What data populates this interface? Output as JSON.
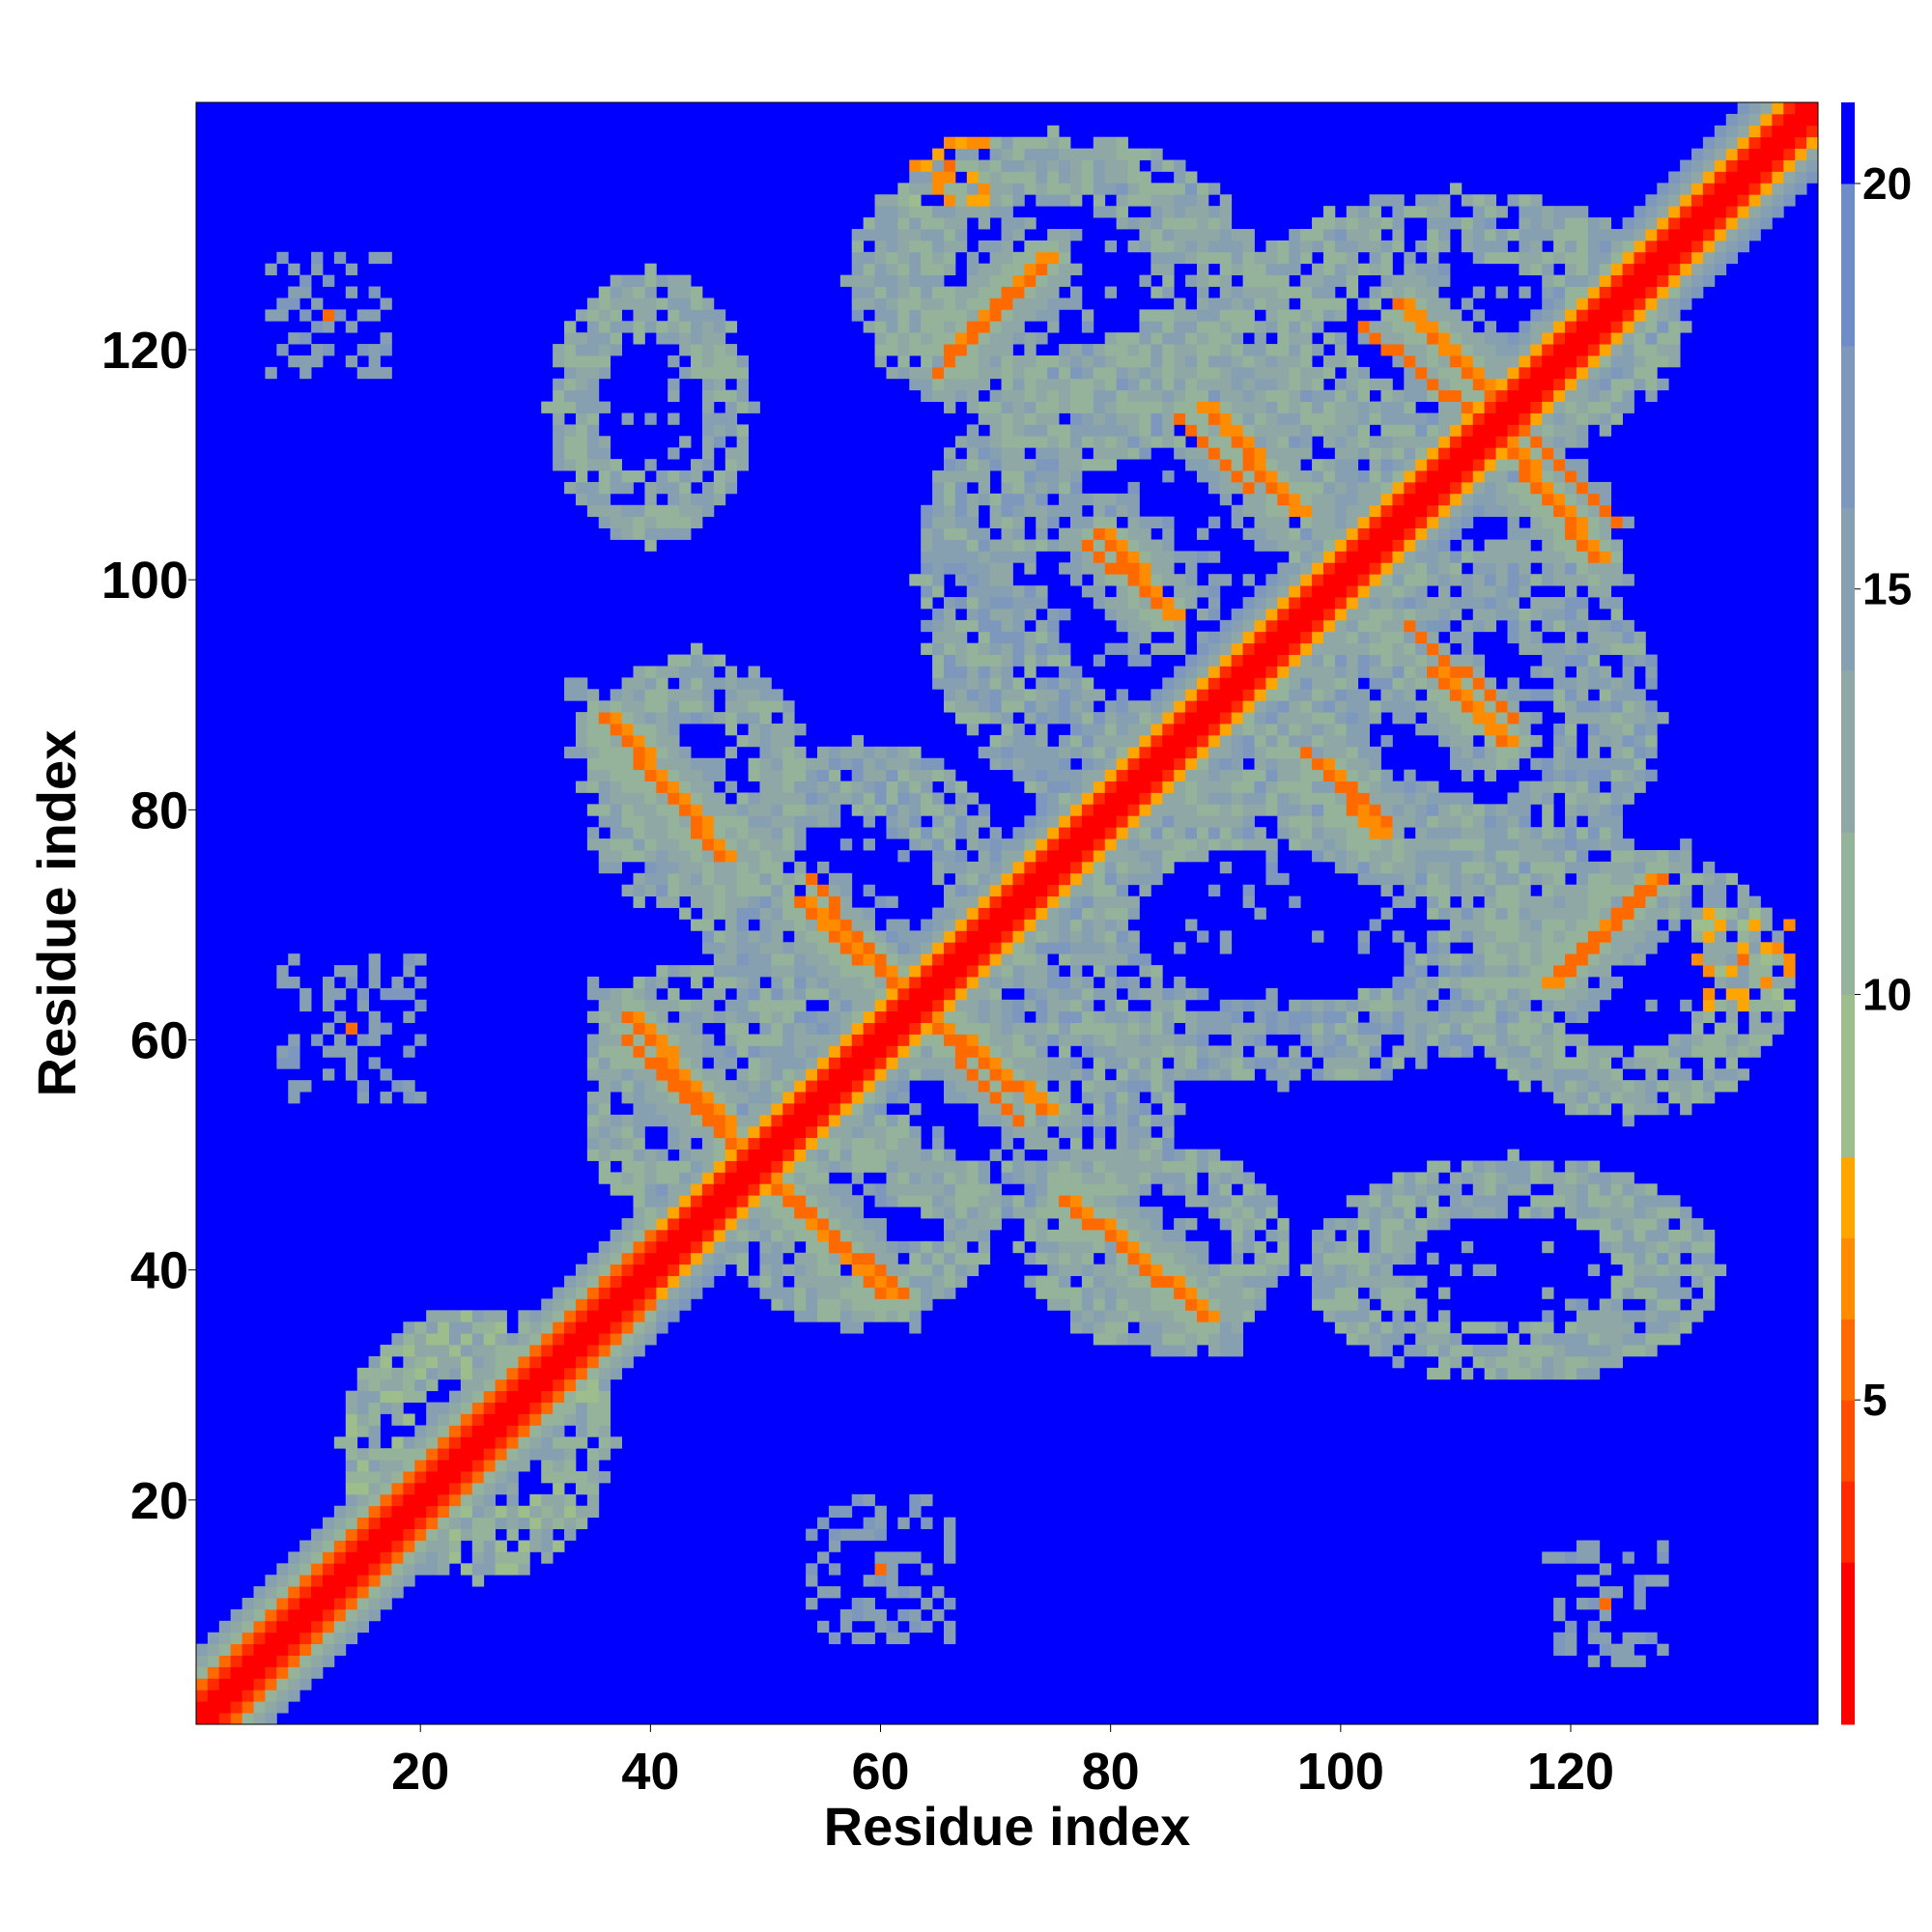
{
  "chart_data": {
    "type": "heatmap",
    "title": "",
    "xlabel": "Residue index",
    "ylabel": "Residue index",
    "xlim": [
      1,
      141
    ],
    "ylim": [
      1,
      141
    ],
    "x_ticks": [
      20,
      40,
      60,
      80,
      100,
      120
    ],
    "y_ticks": [
      20,
      40,
      60,
      80,
      100,
      120
    ],
    "colorbar": {
      "range": [
        1,
        21
      ],
      "ticks": [
        5,
        10,
        15,
        20
      ],
      "colors": [
        {
          "max": 3,
          "color": "#ff0000"
        },
        {
          "max": 4,
          "color": "#ff2a00"
        },
        {
          "max": 5,
          "color": "#ff4d00"
        },
        {
          "max": 6,
          "color": "#ff6a00"
        },
        {
          "max": 7,
          "color": "#ff8c00"
        },
        {
          "max": 8,
          "color": "#ffa500"
        },
        {
          "max": 10,
          "color": "#9dbd8c"
        },
        {
          "max": 12,
          "color": "#95b39a"
        },
        {
          "max": 14,
          "color": "#8fa8a6"
        },
        {
          "max": 16,
          "color": "#86a0b2"
        },
        {
          "max": 18,
          "color": "#7d97bd"
        },
        {
          "max": 20,
          "color": "#6e8cc8"
        },
        {
          "max": 21,
          "color": "#0000ff"
        }
      ]
    },
    "background_value": 21,
    "background_color": "#0000ff",
    "grid": false,
    "features": {
      "diagonal_band": {
        "from": 1,
        "to": 141,
        "core_value": 1,
        "halfwidth": 6
      },
      "sheet_contacts": [
        {
          "i0": 36,
          "j0": 88,
          "i1": 46,
          "j1": 76,
          "value": 6
        },
        {
          "i0": 38,
          "j0": 62,
          "i1": 48,
          "j1": 50,
          "value": 6
        },
        {
          "i0": 53,
          "j0": 72,
          "i1": 64,
          "j1": 62,
          "value": 6
        },
        {
          "i0": 50,
          "j0": 48,
          "i1": 60,
          "j1": 38,
          "value": 6
        },
        {
          "i0": 64,
          "j0": 62,
          "i1": 74,
          "j1": 54,
          "value": 6
        },
        {
          "i0": 76,
          "j0": 46,
          "i1": 88,
          "j1": 36,
          "value": 6
        },
        {
          "i0": 66,
          "j0": 120,
          "i1": 74,
          "j1": 128,
          "value": 6
        },
        {
          "i0": 79,
          "j0": 104,
          "i1": 85,
          "j1": 97,
          "value": 6
        },
        {
          "i0": 88,
          "j0": 115,
          "i1": 96,
          "j1": 106,
          "value": 6
        },
        {
          "i0": 98,
          "j0": 84,
          "i1": 103,
          "j1": 78,
          "value": 6
        },
        {
          "i0": 105,
          "j0": 124,
          "i1": 113,
          "j1": 116,
          "value": 6
        },
        {
          "i0": 108,
          "j0": 92,
          "i1": 114,
          "j1": 86,
          "value": 6
        },
        {
          "i0": 114,
          "j0": 112,
          "i1": 122,
          "j1": 102,
          "value": 6
        },
        {
          "i0": 118,
          "j0": 65,
          "i1": 127,
          "j1": 74,
          "value": 6
        }
      ],
      "halo_clusters": [
        {
          "cx": 40,
          "cy": 115,
          "rx": 9,
          "ry": 12,
          "value": 14
        },
        {
          "cx": 75,
          "cy": 126,
          "rx": 18,
          "ry": 13,
          "value": 14
        },
        {
          "cx": 110,
          "cy": 122,
          "rx": 20,
          "ry": 12,
          "value": 14
        },
        {
          "cx": 44,
          "cy": 82,
          "rx": 10,
          "ry": 12,
          "value": 14
        },
        {
          "cx": 85,
          "cy": 100,
          "rx": 22,
          "ry": 22,
          "value": 15
        },
        {
          "cx": 110,
          "cy": 88,
          "rx": 18,
          "ry": 16,
          "value": 15
        },
        {
          "cx": 58,
          "cy": 72,
          "rx": 14,
          "ry": 14,
          "value": 15
        },
        {
          "cx": 95,
          "cy": 70,
          "rx": 26,
          "ry": 14,
          "value": 15
        },
        {
          "cx": 125,
          "cy": 65,
          "rx": 14,
          "ry": 12,
          "value": 14
        },
        {
          "cx": 44,
          "cy": 55,
          "rx": 10,
          "ry": 12,
          "value": 14
        },
        {
          "cx": 70,
          "cy": 54,
          "rx": 16,
          "ry": 10,
          "value": 15
        },
        {
          "cx": 58,
          "cy": 44,
          "rx": 12,
          "ry": 9,
          "value": 14
        },
        {
          "cx": 84,
          "cy": 42,
          "rx": 12,
          "ry": 9,
          "value": 14
        },
        {
          "cx": 115,
          "cy": 40,
          "rx": 18,
          "ry": 10,
          "value": 14
        },
        {
          "cx": 25,
          "cy": 25,
          "rx": 12,
          "ry": 12,
          "value": 13
        }
      ],
      "sparse_specks": [
        {
          "cx": 12,
          "cy": 123,
          "r": 5,
          "value": 15
        },
        {
          "cx": 14,
          "cy": 61,
          "r": 6,
          "value": 15
        },
        {
          "cx": 60,
          "cy": 14,
          "r": 6,
          "value": 15
        },
        {
          "cx": 123,
          "cy": 11,
          "r": 5,
          "value": 15
        },
        {
          "cx": 135,
          "cy": 67,
          "r": 4,
          "value": 7
        },
        {
          "cx": 66,
          "cy": 136,
          "r": 3,
          "value": 7
        }
      ]
    }
  }
}
